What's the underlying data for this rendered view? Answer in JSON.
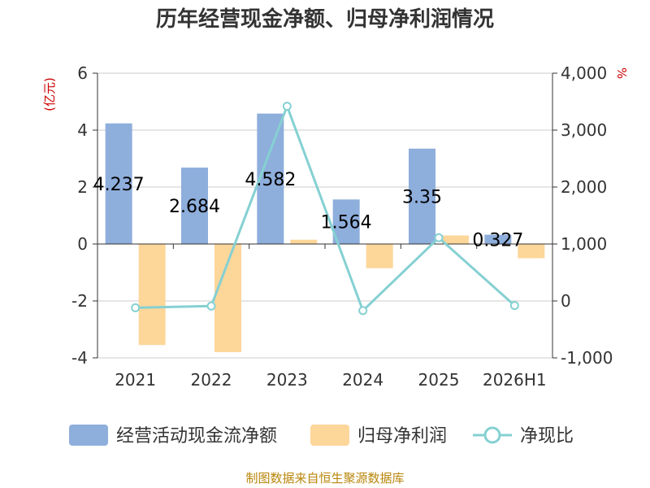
{
  "chart_data": {
    "type": "bar",
    "title": "历年经营现金净额、归母净利润情况",
    "left_unit": "(亿元)",
    "right_unit": "%",
    "categories": [
      "2021",
      "2022",
      "2023",
      "2024",
      "2025",
      "2026H1"
    ],
    "left_axis": {
      "min": -4,
      "max": 6,
      "ticks": [
        6,
        4,
        2,
        0,
        -2,
        -4
      ],
      "tick_labels": [
        "6",
        "4",
        "2",
        "0",
        "-2",
        "-4"
      ]
    },
    "right_axis": {
      "min": -1000,
      "max": 4000,
      "ticks": [
        4000,
        3000,
        2000,
        1000,
        0,
        -1000
      ],
      "tick_labels": [
        "4,000",
        "3,000",
        "2,000",
        "1,000",
        "0",
        "-1,000"
      ]
    },
    "series": [
      {
        "name": "经营活动现金流净额",
        "type": "bar",
        "axis": "left",
        "color": "#8eaedc",
        "values": [
          4.237,
          2.684,
          4.582,
          1.564,
          3.35,
          0.327
        ],
        "labels": [
          "4.237",
          "2.684",
          "4.582",
          "1.564",
          "3.35",
          "0.327"
        ]
      },
      {
        "name": "归母净利润",
        "type": "bar",
        "axis": "left",
        "color": "#fdd69a",
        "values": [
          -3.55,
          -3.8,
          0.15,
          -0.85,
          0.3,
          -0.5
        ]
      },
      {
        "name": "净现比",
        "type": "line",
        "axis": "right",
        "color": "#85d0d2",
        "values": [
          -120,
          -90,
          3420,
          -170,
          1110,
          -80
        ]
      }
    ],
    "grid": true,
    "legend_position": "bottom"
  },
  "source": "制图数据来自恒生聚源数据库"
}
